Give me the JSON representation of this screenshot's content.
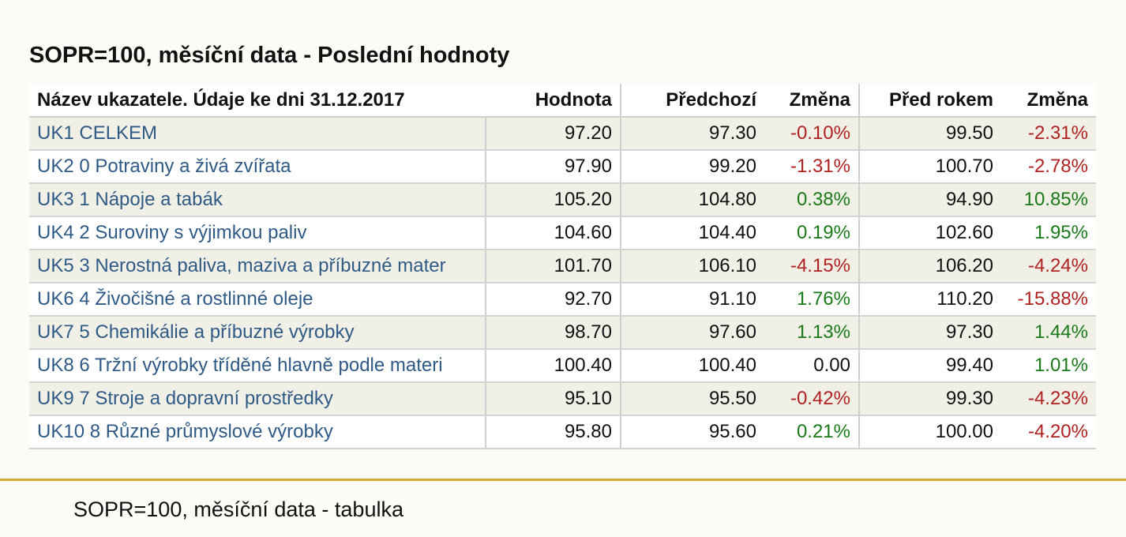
{
  "title": "SOPR=100, měsíční data - Poslední hodnoty",
  "table": {
    "headers": {
      "name": "Název ukazatele. Údaje ke dni 31.12.2017",
      "value": "Hodnota",
      "previous": "Předchozí",
      "change": "Změna",
      "year_ago": "Před rokem",
      "change_year": "Změna"
    },
    "rows": [
      {
        "name": "UK1 CELKEM",
        "value": "97.20",
        "previous": "97.30",
        "change": "-0.10%",
        "year_ago": "99.50",
        "change_year": "-2.31%"
      },
      {
        "name": "UK2 0 Potraviny a živá zvířata",
        "value": "97.90",
        "previous": "99.20",
        "change": "-1.31%",
        "year_ago": "100.70",
        "change_year": "-2.78%"
      },
      {
        "name": "UK3 1 Nápoje a tabák",
        "value": "105.20",
        "previous": "104.80",
        "change": "0.38%",
        "year_ago": "94.90",
        "change_year": "10.85%"
      },
      {
        "name": "UK4 2 Suroviny s výjimkou paliv",
        "value": "104.60",
        "previous": "104.40",
        "change": "0.19%",
        "year_ago": "102.60",
        "change_year": "1.95%"
      },
      {
        "name": "UK5 3 Nerostná paliva, maziva a příbuzné mater",
        "value": "101.70",
        "previous": "106.10",
        "change": "-4.15%",
        "year_ago": "106.20",
        "change_year": "-4.24%"
      },
      {
        "name": "UK6 4 Živočišné a rostlinné oleje",
        "value": "92.70",
        "previous": "91.10",
        "change": "1.76%",
        "year_ago": "110.20",
        "change_year": "-15.88%"
      },
      {
        "name": "UK7 5 Chemikálie a příbuzné výrobky",
        "value": "98.70",
        "previous": "97.60",
        "change": "1.13%",
        "year_ago": "97.30",
        "change_year": "1.44%"
      },
      {
        "name": "UK8 6 Tržní výrobky tříděné hlavně podle materi",
        "value": "100.40",
        "previous": "100.40",
        "change": "0.00",
        "year_ago": "99.40",
        "change_year": "1.01%"
      },
      {
        "name": "UK9 7 Stroje a dopravní prostředky",
        "value": "95.10",
        "previous": "95.50",
        "change": "-0.42%",
        "year_ago": "99.30",
        "change_year": "-4.23%"
      },
      {
        "name": "UK10 8 Různé průmyslové výrobky",
        "value": "95.80",
        "previous": "95.60",
        "change": "0.21%",
        "year_ago": "100.00",
        "change_year": "-4.20%"
      }
    ]
  },
  "footer": {
    "caption": "SOPR=100, měsíční data - tabulka"
  },
  "colors": {
    "link": "#2f5a86",
    "negative": "#b02222",
    "positive": "#1a7a1a",
    "accent_rule": "#d8ab34",
    "band": "#f1f0e6"
  }
}
